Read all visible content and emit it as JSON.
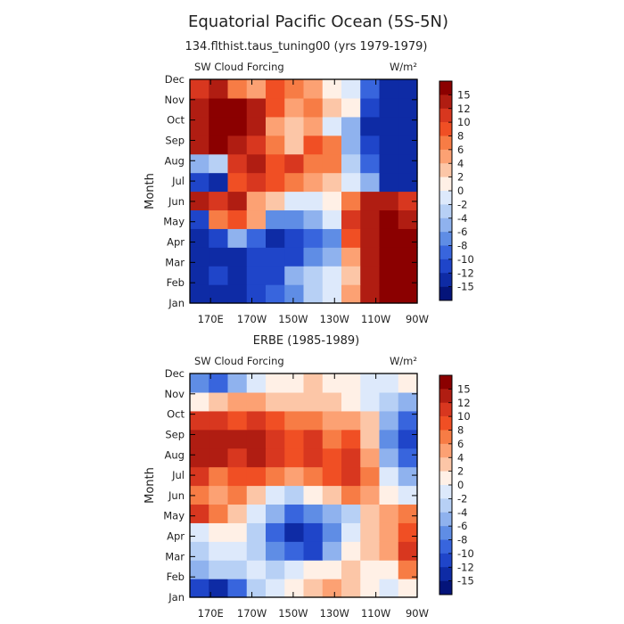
{
  "title": "Equatorial Pacific Ocean (5S-5N)",
  "chart_data": [
    {
      "type": "heatmap",
      "subtitle": "134.flthist.taus_tuning00 (yrs 1979-1979)",
      "field_label": "SW Cloud Forcing",
      "units": "W/m²",
      "ylabel": "Month",
      "x_ticks": [
        "170E",
        "170W",
        "150W",
        "130W",
        "110W",
        "90W"
      ],
      "y_ticks": [
        "Jan",
        "Feb",
        "Mar",
        "Apr",
        "May",
        "Jun",
        "Jul",
        "Aug",
        "Sep",
        "Oct",
        "Nov",
        "Dec"
      ],
      "colorbar_ticks": [
        "15",
        "12",
        "10",
        "8",
        "6",
        "4",
        "2",
        "0",
        "-2",
        "-4",
        "-6",
        "-8",
        "-10",
        "-12",
        "-15"
      ],
      "colorbar_range": [
        -15,
        15
      ],
      "xlim": [
        160,
        270
      ],
      "ylim": [
        1,
        12
      ],
      "x": [
        160,
        170,
        180,
        190,
        200,
        210,
        220,
        230,
        240,
        250,
        260,
        270
      ],
      "y": [
        1,
        2,
        3,
        4,
        5,
        6,
        7,
        8,
        9,
        10,
        11,
        12
      ],
      "z": [
        [
          -15,
          -14,
          -13,
          -12,
          -10,
          -7,
          -4,
          -1,
          4,
          12,
          16,
          16
        ],
        [
          -14,
          -12,
          -13,
          -12,
          -11,
          -5,
          -3,
          -2,
          3,
          13,
          16,
          16
        ],
        [
          -15,
          -15,
          -14,
          -12,
          -12,
          -11,
          -7,
          -5,
          5,
          14,
          16,
          16
        ],
        [
          -13,
          -12,
          -6,
          -10,
          -13,
          -11,
          -9,
          -8,
          8,
          14,
          16,
          16
        ],
        [
          -12,
          6,
          8,
          4,
          -7,
          -8,
          -6,
          -2,
          10,
          14,
          15,
          14
        ],
        [
          12,
          10,
          12,
          4,
          3,
          -1,
          -2,
          0,
          6,
          12,
          13,
          10
        ],
        [
          -12,
          -13,
          8,
          10,
          8,
          6,
          4,
          2,
          -2,
          -6,
          -14,
          -15
        ],
        [
          -6,
          -4,
          10,
          12,
          8,
          10,
          6,
          6,
          -4,
          -10,
          -15,
          -15
        ],
        [
          14,
          16,
          13,
          10,
          6,
          2,
          8,
          6,
          -6,
          -12,
          -15,
          -15
        ],
        [
          12,
          16,
          16,
          12,
          4,
          2,
          4,
          -2,
          -6,
          -13,
          -15,
          -15
        ],
        [
          14,
          16,
          16,
          12,
          8,
          4,
          6,
          2,
          0,
          -12,
          -15,
          -15
        ],
        [
          10,
          12,
          6,
          4,
          8,
          6,
          4,
          1,
          -2,
          -10,
          -15,
          -15
        ]
      ]
    },
    {
      "type": "heatmap",
      "subtitle": "ERBE (1985-1989)",
      "field_label": "SW Cloud Forcing",
      "units": "W/m²",
      "ylabel": "Month",
      "x_ticks": [
        "170E",
        "170W",
        "150W",
        "130W",
        "110W",
        "90W"
      ],
      "y_ticks": [
        "Jan",
        "Feb",
        "Mar",
        "Apr",
        "May",
        "Jun",
        "Jul",
        "Aug",
        "Sep",
        "Oct",
        "Nov",
        "Dec"
      ],
      "colorbar_ticks": [
        "15",
        "12",
        "10",
        "8",
        "6",
        "4",
        "2",
        "0",
        "-2",
        "-4",
        "-6",
        "-8",
        "-10",
        "-12",
        "-15"
      ],
      "colorbar_range": [
        -15,
        15
      ],
      "xlim": [
        160,
        270
      ],
      "ylim": [
        1,
        12
      ],
      "x": [
        160,
        170,
        180,
        190,
        200,
        210,
        220,
        230,
        240,
        250,
        260,
        270
      ],
      "y": [
        1,
        2,
        3,
        4,
        5,
        6,
        7,
        8,
        9,
        10,
        11,
        12
      ],
      "z": [
        [
          -12,
          -13,
          -10,
          -4,
          -2,
          0,
          2,
          4,
          2,
          0,
          -2,
          0
        ],
        [
          -6,
          -4,
          -3,
          -2,
          -4,
          -2,
          0,
          1,
          2,
          0,
          0,
          6
        ],
        [
          -3,
          -2,
          -1,
          -4,
          -8,
          -10,
          -11,
          -6,
          0,
          2,
          4,
          10
        ],
        [
          -1,
          0,
          0,
          -4,
          -10,
          -13,
          -12,
          -8,
          -2,
          2,
          4,
          8
        ],
        [
          10,
          6,
          2,
          -2,
          -6,
          -10,
          -8,
          -6,
          -4,
          2,
          4,
          6
        ],
        [
          6,
          4,
          6,
          2,
          -2,
          -4,
          0,
          2,
          6,
          4,
          0,
          -2
        ],
        [
          10,
          6,
          8,
          8,
          6,
          4,
          6,
          8,
          10,
          6,
          -2,
          -6
        ],
        [
          13,
          12,
          10,
          12,
          10,
          8,
          10,
          8,
          10,
          4,
          -6,
          -10
        ],
        [
          12,
          14,
          12,
          12,
          10,
          8,
          10,
          6,
          8,
          2,
          -8,
          -12
        ],
        [
          10,
          10,
          8,
          10,
          8,
          6,
          6,
          4,
          4,
          2,
          -6,
          -10
        ],
        [
          0,
          2,
          4,
          4,
          2,
          2,
          2,
          2,
          0,
          -2,
          -4,
          -6
        ],
        [
          -8,
          -10,
          -6,
          -2,
          0,
          1,
          2,
          1,
          0,
          -2,
          -2,
          0
        ]
      ]
    }
  ]
}
